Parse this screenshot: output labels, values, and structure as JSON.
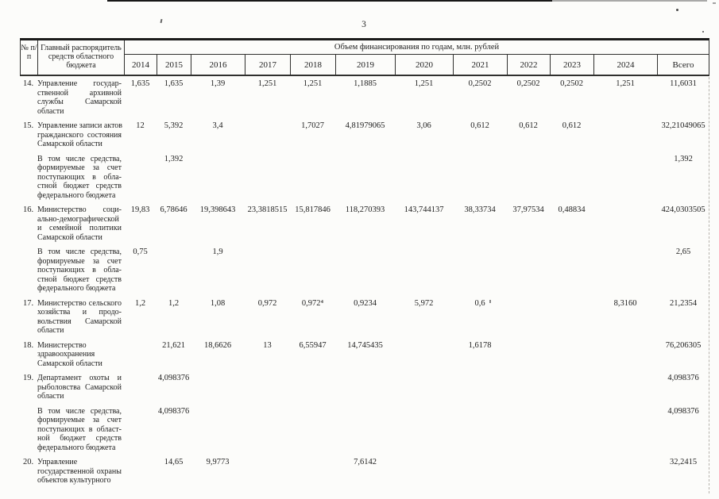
{
  "page_number": "3",
  "table": {
    "header": {
      "col_num": "№ п/п",
      "col_name": "Главный распорядитель средств областного бюджета",
      "span_title": "Объем финансирования по годам, млн. рублей",
      "years": [
        "2014",
        "2015",
        "2016",
        "2017",
        "2018",
        "2019",
        "2020",
        "2021",
        "2022",
        "2023",
        "2024"
      ],
      "total_label": "Всего"
    },
    "rows": [
      {
        "num": "14.",
        "sub": false,
        "name_lines": [
          "Управление государ-",
          "ственной архивной",
          "службы Самарской",
          "области"
        ],
        "values": [
          "1,635",
          "1,635",
          "1,39",
          "1,251",
          "1,251",
          "1,1885",
          "1,251",
          "0,2502",
          "0,2502",
          "0,2502",
          "1,251",
          "11,6031"
        ]
      },
      {
        "num": "15.",
        "sub": false,
        "name_lines": [
          "Управление записи актов",
          "гражданского состояния",
          "Самарской области"
        ],
        "values": [
          "12",
          "5,392",
          "3,4",
          "",
          "1,7027",
          "4,81979065",
          "3,06",
          "0,612",
          "0,612",
          "0,612",
          "",
          "32,21049065"
        ]
      },
      {
        "num": "",
        "sub": true,
        "name_lines": [
          "В том числе средства,",
          "формируемые за счет",
          "поступающих в обла-",
          "стной бюджет средств",
          "федерального бюджета"
        ],
        "values": [
          "",
          "1,392",
          "",
          "",
          "",
          "",
          "",
          "",
          "",
          "",
          "",
          "1,392"
        ]
      },
      {
        "num": "16.",
        "sub": false,
        "name_lines": [
          "Министерство соци-",
          "ально-демографической",
          "и семейной политики",
          "Самарской области"
        ],
        "values": [
          "19,83",
          "6,78646",
          "19,398643",
          "23,3818515",
          "15,817846",
          "118,270393",
          "143,744137",
          "38,33734",
          "37,97534",
          "0,48834",
          "",
          "424,0303505"
        ]
      },
      {
        "num": "",
        "sub": true,
        "name_lines": [
          "В том числе средства,",
          "формируемые за счет",
          "поступающих в обла-",
          "стной бюджет средств",
          "федерального бюджета"
        ],
        "values": [
          "0,75",
          "",
          "1,9",
          "",
          "",
          "",
          "",
          "",
          "",
          "",
          "",
          "2,65"
        ]
      },
      {
        "num": "17.",
        "sub": false,
        "name_lines": [
          "Министерство сельского",
          "хозяйства и продо-",
          "вольствия Самарской",
          "области"
        ],
        "values": [
          "1,2",
          "1,2",
          "1,08",
          "0,972",
          "0,972⁴",
          "0,9234",
          "5,972",
          "0,6",
          "",
          "",
          "8,3160",
          "21,2354"
        ]
      },
      {
        "num": "18.",
        "sub": false,
        "name_lines": [
          "Министерство",
          "здравоохранения",
          "Самарской области"
        ],
        "values": [
          "",
          "21,621",
          "18,6626",
          "13",
          "6,55947",
          "14,745435",
          "",
          "1,6178",
          "",
          "",
          "",
          "76,206305"
        ]
      },
      {
        "num": "19.",
        "sub": false,
        "name_lines": [
          "Департамент охоты и",
          "рыболовства Самарской",
          "области"
        ],
        "values": [
          "",
          "4,098376",
          "",
          "",
          "",
          "",
          "",
          "",
          "",
          "",
          "",
          "4,098376"
        ]
      },
      {
        "num": "",
        "sub": true,
        "name_lines": [
          "В том числе средства,",
          "формируемые за счет",
          "поступающих в област-",
          "ной бюджет средств",
          "федерального бюджета"
        ],
        "values": [
          "",
          "4,098376",
          "",
          "",
          "",
          "",
          "",
          "",
          "",
          "",
          "",
          "4,098376"
        ]
      },
      {
        "num": "20.",
        "sub": false,
        "name_lines": [
          "Управление",
          "государственной охраны",
          "объектов культурного"
        ],
        "values": [
          "",
          "14,65",
          "9,9773",
          "",
          "",
          "7,6142",
          "",
          "",
          "",
          "",
          "",
          "32,2415"
        ]
      }
    ]
  }
}
